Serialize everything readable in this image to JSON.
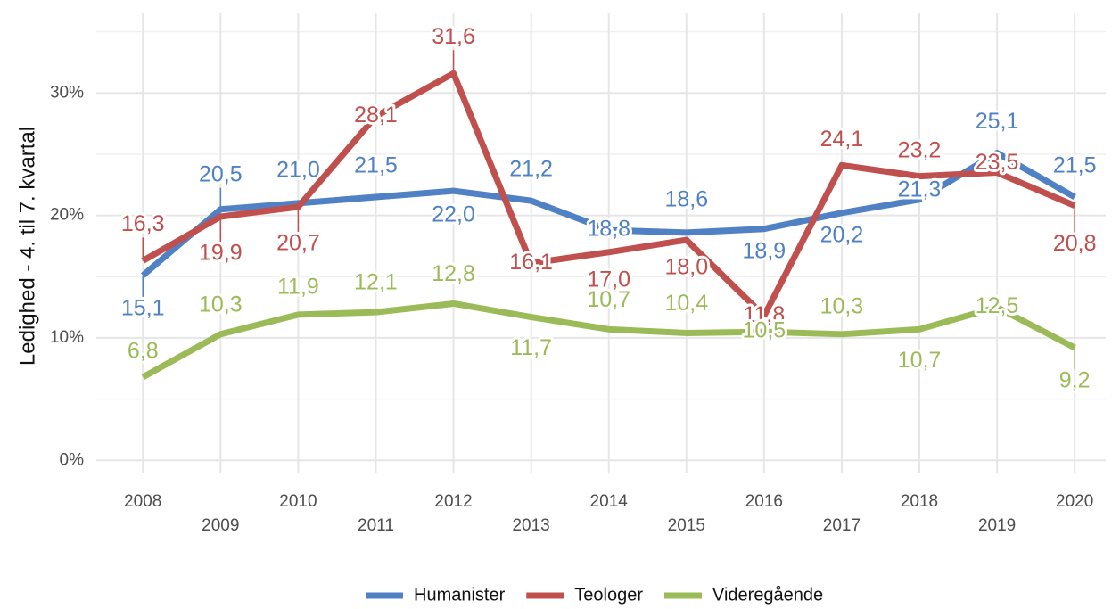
{
  "chart_data": {
    "type": "line",
    "y_label": "Ledighed - 4. til 7. kvartal",
    "x": [
      2008,
      2009,
      2010,
      2011,
      2012,
      2013,
      2014,
      2015,
      2016,
      2017,
      2018,
      2019,
      2020
    ],
    "xlim": [
      2007.4,
      2020.4
    ],
    "xticks": [
      2008,
      2009,
      2010,
      2011,
      2012,
      2013,
      2014,
      2015,
      2016,
      2017,
      2018,
      2019,
      2020
    ],
    "ylim": [
      -1,
      36.5
    ],
    "yticks": [
      {
        "value": 0,
        "label": "0%"
      },
      {
        "value": 10,
        "label": "10%"
      },
      {
        "value": 20,
        "label": "20%"
      },
      {
        "value": 30,
        "label": "30%"
      }
    ],
    "y_minor_ticks": [
      5,
      15,
      25,
      35
    ],
    "grid": true,
    "legend_position": "bottom",
    "series": [
      {
        "name": "Humanister",
        "color": "#4f81c4",
        "values": [
          15.1,
          20.5,
          21.0,
          21.5,
          22.0,
          21.2,
          18.8,
          18.6,
          18.9,
          20.2,
          21.3,
          25.1,
          21.5
        ],
        "value_labels": [
          "15,1",
          "20,5",
          "21,0",
          "21,5",
          "22,0",
          "21,2",
          "18,8",
          "18,6",
          "18,9",
          "20,2",
          "21,3",
          "25,1",
          "21,5"
        ]
      },
      {
        "name": "Teologer",
        "color": "#c0504d",
        "values": [
          16.3,
          19.9,
          20.7,
          28.1,
          31.6,
          16.1,
          17.0,
          18.0,
          11.8,
          24.1,
          23.2,
          23.5,
          20.8
        ],
        "value_labels": [
          "16,3",
          "19,9",
          "20,7",
          "28,1",
          "31,6",
          "16,1",
          "17,0",
          "18,0",
          "11,8",
          "24,1",
          "23,2",
          "23,5",
          "20,8"
        ]
      },
      {
        "name": "Videregående",
        "color": "#9bbb59",
        "values": [
          6.8,
          10.3,
          11.9,
          12.1,
          12.8,
          11.7,
          10.7,
          10.4,
          10.5,
          10.3,
          10.7,
          12.5,
          9.2
        ],
        "value_labels": [
          "6,8",
          "10,3",
          "11,9",
          "12,1",
          "12,8",
          "11,7",
          "10,7",
          "10,4",
          "10,5",
          "10,3",
          "10,7",
          "12,5",
          "9,2"
        ]
      }
    ]
  }
}
